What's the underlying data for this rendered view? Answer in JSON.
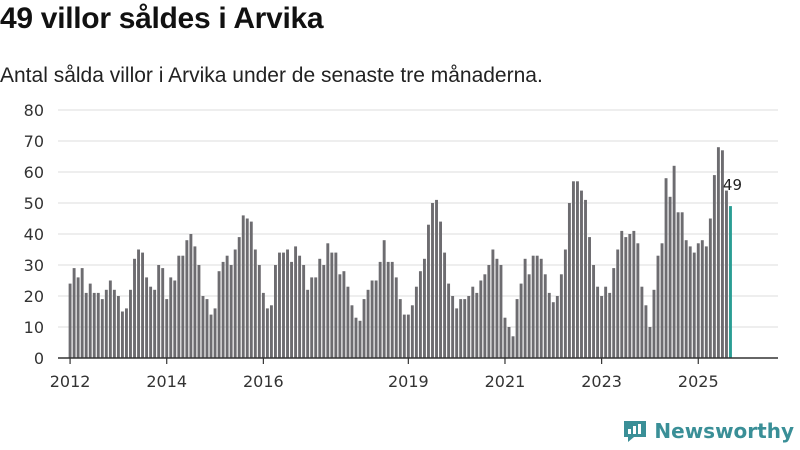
{
  "title": "49 villor såldes i Arvika",
  "subtitle": "Antal sålda villor i Arvika under de senaste tre månaderna.",
  "brand": "Newsworthy",
  "colors": {
    "bar": "#6d6c70",
    "highlight": "#2a9d94",
    "grid": "#dddddd",
    "axis": "#333333",
    "brand": "#3a8f97"
  },
  "chart_data": {
    "type": "bar",
    "title": "49 villor såldes i Arvika",
    "xlabel": "",
    "ylabel": "",
    "ylim": [
      0,
      80
    ],
    "yticks": [
      0,
      10,
      20,
      30,
      40,
      50,
      60,
      70,
      80
    ],
    "xlim": [
      2011.75,
      2026.65
    ],
    "xticks": [
      {
        "label": "2012",
        "x": 2012.0
      },
      {
        "label": "2014",
        "x": 2014.0
      },
      {
        "label": "2016",
        "x": 2016.0
      },
      {
        "label": "2019",
        "x": 2019.0
      },
      {
        "label": "2021",
        "x": 2021.0
      },
      {
        "label": "2023",
        "x": 2023.0
      },
      {
        "label": "2025",
        "x": 2025.0
      }
    ],
    "start": "2012-01",
    "frequency": "monthly",
    "values": [
      24,
      29,
      26,
      29,
      21,
      24,
      21,
      21,
      19,
      22,
      25,
      22,
      20,
      15,
      16,
      22,
      32,
      35,
      34,
      26,
      23,
      22,
      30,
      29,
      19,
      26,
      25,
      33,
      33,
      38,
      40,
      36,
      30,
      20,
      19,
      14,
      16,
      28,
      31,
      33,
      30,
      35,
      39,
      46,
      45,
      44,
      35,
      30,
      21,
      16,
      17,
      30,
      34,
      34,
      35,
      31,
      36,
      33,
      30,
      22,
      26,
      26,
      32,
      30,
      37,
      34,
      34,
      27,
      28,
      23,
      17,
      13,
      12,
      19,
      22,
      25,
      25,
      31,
      38,
      31,
      31,
      26,
      19,
      14,
      14,
      17,
      23,
      28,
      32,
      43,
      50,
      51,
      44,
      34,
      24,
      20,
      16,
      19,
      19,
      20,
      23,
      21,
      25,
      27,
      30,
      35,
      32,
      30,
      13,
      10,
      7,
      19,
      24,
      32,
      27,
      33,
      33,
      32,
      27,
      21,
      18,
      20,
      27,
      35,
      50,
      57,
      57,
      54,
      51,
      39,
      30,
      23,
      20,
      23,
      21,
      29,
      35,
      41,
      39,
      40,
      41,
      37,
      23,
      17,
      10,
      22,
      33,
      37,
      58,
      52,
      62,
      47,
      47,
      38,
      36,
      34,
      37,
      38,
      36,
      45,
      59,
      68,
      67,
      54,
      49
    ],
    "highlight_last": true,
    "data_labels": [
      {
        "label": "49"
      }
    ]
  }
}
